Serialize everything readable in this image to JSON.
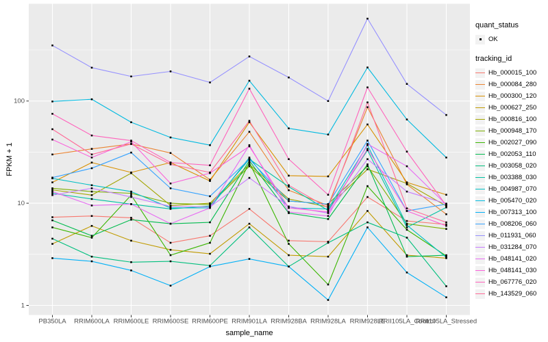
{
  "chart_data": {
    "type": "line",
    "xlabel": "sample_name",
    "ylabel": "FPKM + 1",
    "y_scale": "log10",
    "y_ticks": [
      1,
      10,
      100
    ],
    "y_minor_values": [
      3.162,
      31.62,
      316.2
    ],
    "ylim": [
      1,
      890
    ],
    "grid": true,
    "legend_position": "right",
    "point_shape": "filled-square",
    "point_color": "#000000",
    "categories": [
      "PB350LA",
      "RRIM600LA",
      "RRIM600LE",
      "RRIM600SE",
      "RRIM600PE",
      "RRIM901LA",
      "RRIM928BA",
      "RRIM928LA",
      "RRIM928LE",
      "RRII105LA_Control",
      "RRII105LA_Stressed"
    ],
    "series": [
      {
        "name": "Hb_000015_100",
        "color": "#F8766D",
        "values": [
          7.3,
          7.5,
          7.2,
          4.1,
          4.8,
          8.8,
          4.3,
          4.2,
          11.5,
          6.7,
          6.2
        ]
      },
      {
        "name": "Hb_000084_280",
        "color": "#EA8331",
        "values": [
          30,
          34,
          38,
          31,
          17,
          50,
          13.4,
          9.5,
          87,
          15.3,
          7.8
        ]
      },
      {
        "name": "Hb_000300_120",
        "color": "#D89000",
        "values": [
          16,
          25,
          20,
          25,
          16.5,
          62,
          18.6,
          18.3,
          59,
          16,
          12.1
        ]
      },
      {
        "name": "Hb_000627_250",
        "color": "#C09B00",
        "values": [
          4.0,
          6.0,
          4.3,
          3.5,
          3.2,
          6.3,
          3.1,
          3.0,
          8.4,
          3.1,
          2.9
        ]
      },
      {
        "name": "Hb_000816_100",
        "color": "#A3A500",
        "values": [
          13.5,
          12,
          19.7,
          9.5,
          10,
          24,
          11,
          9.2,
          21.5,
          15.6,
          9.4
        ]
      },
      {
        "name": "Hb_000948_170",
        "color": "#7CAE00",
        "values": [
          14,
          13,
          12.5,
          10,
          9.7,
          23,
          10.5,
          9.8,
          23,
          6.3,
          5.6
        ]
      },
      {
        "name": "Hb_002027_090",
        "color": "#39B600",
        "values": [
          5.8,
          4.6,
          12,
          3.1,
          4.1,
          25,
          4.0,
          1.6,
          14.7,
          5.5,
          3.05
        ]
      },
      {
        "name": "Hb_002053_110",
        "color": "#00BB4E",
        "values": [
          6.8,
          4.8,
          6.9,
          6.3,
          6.5,
          26,
          8.0,
          7.0,
          24,
          3.0,
          3.1
        ]
      },
      {
        "name": "Hb_003058_020",
        "color": "#00BF7D",
        "values": [
          4.5,
          3.0,
          2.65,
          2.7,
          2.45,
          5.8,
          2.4,
          4.1,
          6.5,
          4.6,
          1.54
        ]
      },
      {
        "name": "Hb_003388_030",
        "color": "#00C1A3",
        "values": [
          12.5,
          11,
          9.8,
          8.8,
          9.4,
          27,
          14.5,
          8.5,
          33,
          5.8,
          9.1
        ]
      },
      {
        "name": "Hb_004987_070",
        "color": "#00BFC4",
        "values": [
          17.5,
          15,
          13,
          9.0,
          9.0,
          28,
          9.0,
          8.8,
          37,
          6.1,
          2.95
        ]
      },
      {
        "name": "Hb_005470_020",
        "color": "#00BAE0",
        "values": [
          99,
          104,
          62,
          44,
          37,
          158,
          54,
          47,
          213,
          66,
          28
        ]
      },
      {
        "name": "Hb_007313_100",
        "color": "#00B0F6",
        "values": [
          2.9,
          2.7,
          2.2,
          1.56,
          2.4,
          2.85,
          2.4,
          1.13,
          5.8,
          2.1,
          1.2
        ]
      },
      {
        "name": "Hb_008206_060",
        "color": "#35A2FF",
        "values": [
          17.8,
          22,
          31.3,
          14,
          11.7,
          27,
          10.5,
          9.8,
          41,
          8.4,
          9.8
        ]
      },
      {
        "name": "Hb_011931_060",
        "color": "#9590FF",
        "values": [
          350,
          212,
          174,
          195,
          152,
          273,
          170,
          100,
          640,
          147,
          73
        ]
      },
      {
        "name": "Hb_031284_070",
        "color": "#C77CFF",
        "values": [
          12,
          14,
          11.5,
          9.3,
          9.2,
          17.7,
          9.3,
          8.0,
          27,
          13,
          9.9
        ]
      },
      {
        "name": "Hb_048141_020",
        "color": "#E76BF3",
        "values": [
          13,
          9.5,
          9.8,
          6.3,
          9.0,
          37,
          8.2,
          7.5,
          38,
          23,
          9.7
        ]
      },
      {
        "name": "Hb_048141_030",
        "color": "#FA62DB",
        "values": [
          42,
          28,
          40,
          15.6,
          19.7,
          36,
          9.0,
          8.2,
          34,
          8.4,
          6.0
        ]
      },
      {
        "name": "Hb_067776_020",
        "color": "#FF62BC",
        "values": [
          75,
          46,
          41,
          25,
          23.5,
          132,
          27,
          12.1,
          136,
          32,
          9.5
        ]
      },
      {
        "name": "Hb_143529_060",
        "color": "#FF6A98",
        "values": [
          53,
          30,
          38,
          24,
          20,
          64,
          15,
          9.0,
          97,
          8.9,
          6.5
        ]
      }
    ]
  },
  "legend": {
    "quant_status": {
      "title": "quant_status",
      "items": [
        {
          "label": "OK"
        }
      ]
    },
    "tracking_id": {
      "title": "tracking_id"
    }
  },
  "colors": {
    "panel_background": "#EBEBEB",
    "gridline": "#FFFFFF",
    "axis_text": "#4D4D4D",
    "tick_mark": "#333333",
    "legend_key_background": "#F2F2F2",
    "point": "#000000"
  }
}
